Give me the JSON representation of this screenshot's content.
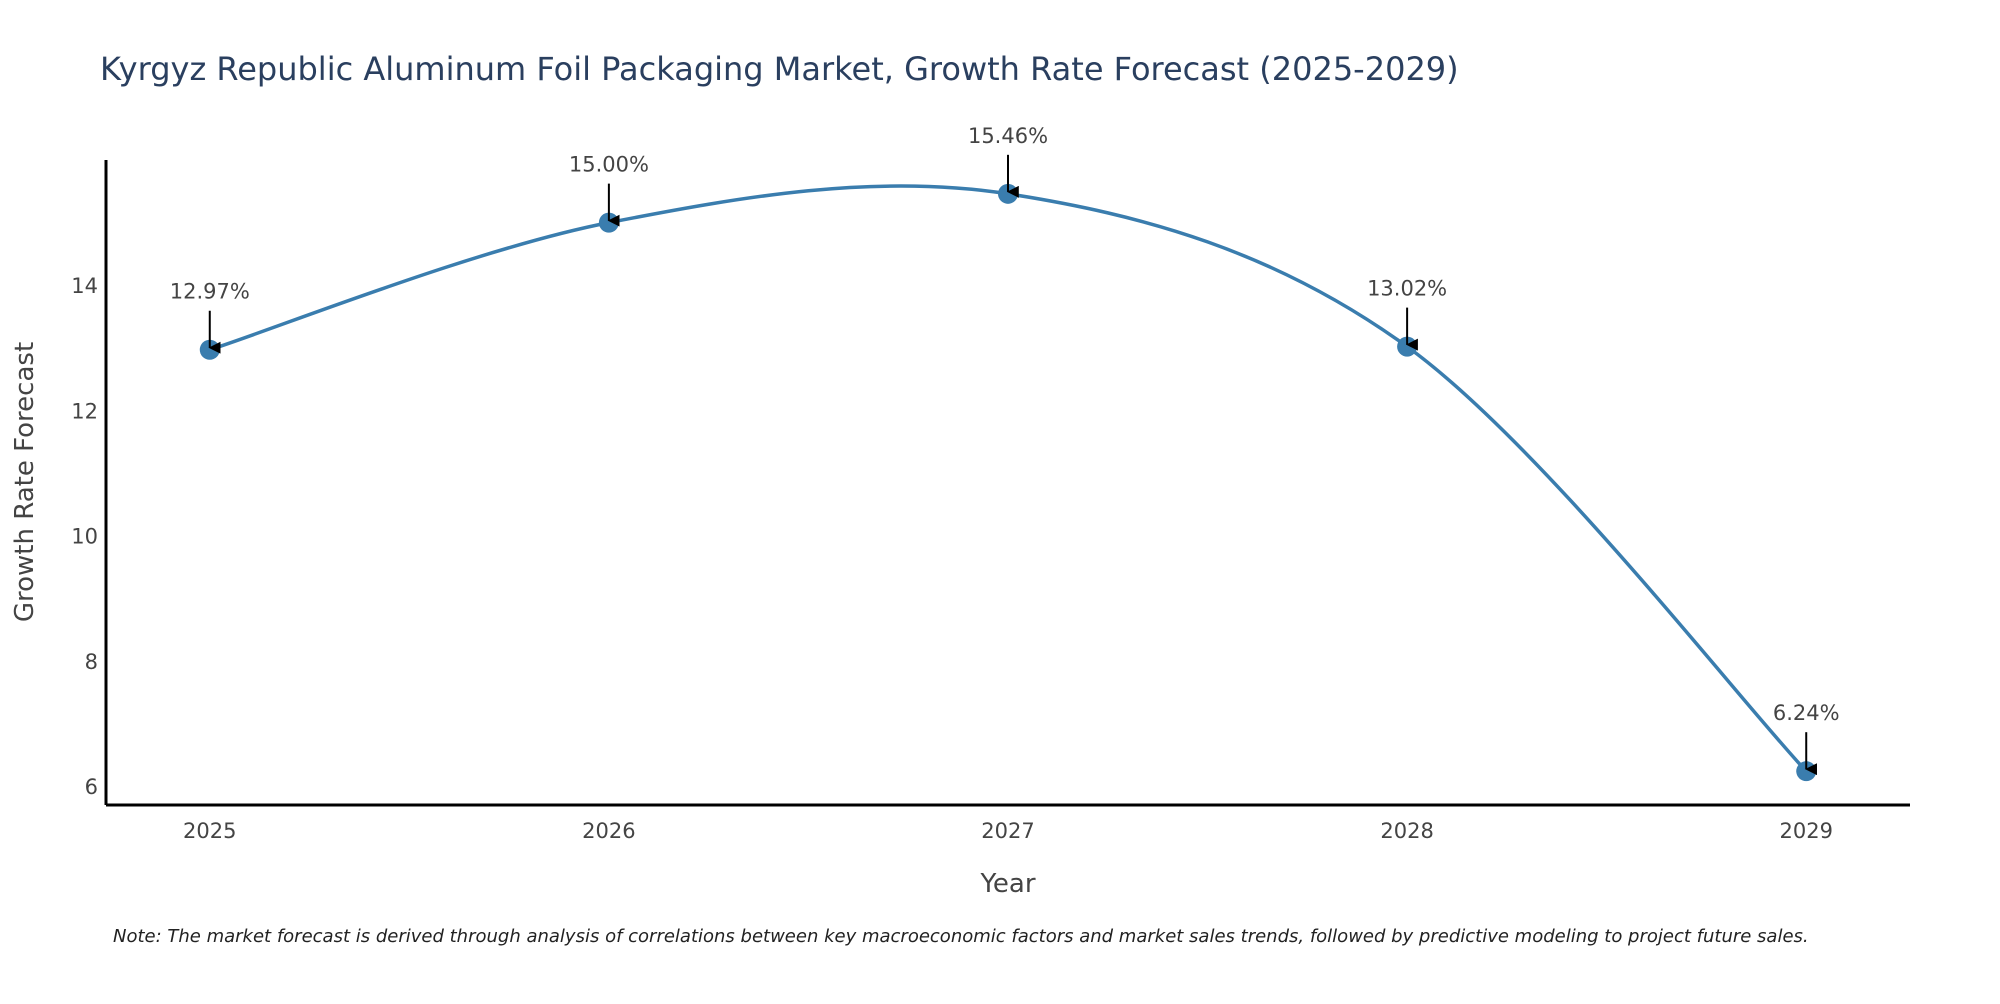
{
  "chart_data": {
    "type": "line",
    "title": "Kyrgyz Republic Aluminum Foil Packaging Market, Growth Rate Forecast (2025-2029)",
    "xlabel": "Year",
    "ylabel": "Growth Rate Forecast",
    "categories": [
      "2025",
      "2026",
      "2027",
      "2028",
      "2029"
    ],
    "series": [
      {
        "name": "Growth Rate Forecast",
        "values": [
          12.97,
          15.0,
          15.46,
          13.02,
          6.24
        ],
        "labels": [
          "12.97%",
          "15.00%",
          "15.46%",
          "13.02%",
          "6.24%"
        ],
        "color": "#3a7dae",
        "smooth": true
      }
    ],
    "xlim": [
      2024.74,
      2029.26
    ],
    "ylim": [
      5.7,
      16.0
    ],
    "yticks": [
      6,
      8,
      10,
      12,
      14
    ],
    "grid": false,
    "note": "Note: The market forecast is derived through analysis of correlations between key macroeconomic factors and market sales trends, followed by predictive modeling to project future sales."
  },
  "colors": {
    "title": "#2a3f5f",
    "tick": "#444444",
    "axis": "#000000",
    "annotation": "#444444",
    "arrow": "#000000"
  }
}
